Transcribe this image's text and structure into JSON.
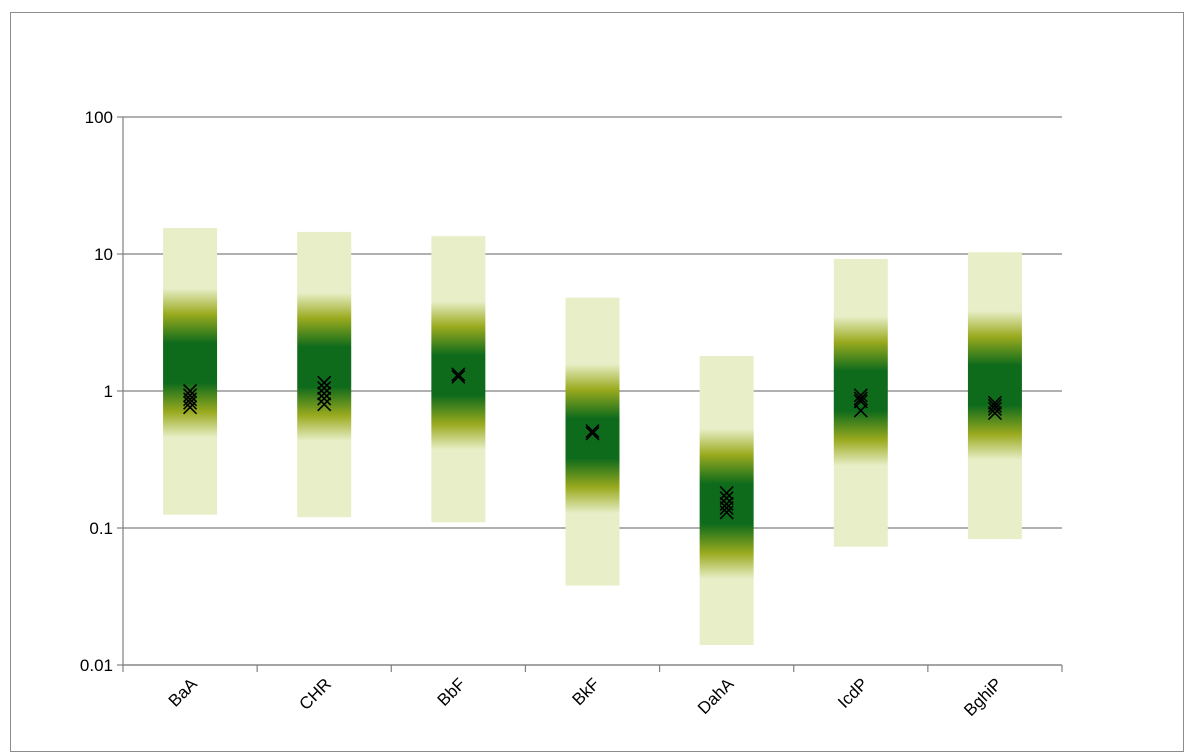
{
  "chart_data": {
    "type": "range-band",
    "yscale": "log",
    "ylim": [
      0.01,
      100
    ],
    "y_ticks": [
      "0.01",
      "0.1",
      "1",
      "10",
      "100"
    ],
    "grid": true,
    "categories": [
      "BaA",
      "CHR",
      "BbF",
      "BkF",
      "DahA",
      "IcdP",
      "BghiP"
    ],
    "bands": [
      {
        "category": "BaA",
        "low": 0.125,
        "high": 15.5,
        "center": 1.6
      },
      {
        "category": "CHR",
        "low": 0.12,
        "high": 14.5,
        "center": 1.5
      },
      {
        "category": "BbF",
        "low": 0.11,
        "high": 13.5,
        "center": 1.3
      },
      {
        "category": "BkF",
        "low": 0.038,
        "high": 4.8,
        "center": 0.45
      },
      {
        "category": "DahA",
        "low": 0.014,
        "high": 1.8,
        "center": 0.15
      },
      {
        "category": "IcdP",
        "low": 0.073,
        "high": 9.2,
        "center": 1.0
      },
      {
        "category": "BghiP",
        "low": 0.083,
        "high": 10.3,
        "center": 1.1
      }
    ],
    "points": [
      {
        "category": "BaA",
        "values": [
          1.0,
          0.93,
          0.87,
          0.82,
          0.76
        ]
      },
      {
        "category": "CHR",
        "values": [
          1.15,
          1.05,
          0.96,
          0.88,
          0.8
        ]
      },
      {
        "category": "BbF",
        "values": [
          1.32,
          1.27
        ]
      },
      {
        "category": "BkF",
        "values": [
          0.51,
          0.49
        ]
      },
      {
        "category": "DahA",
        "values": [
          0.18,
          0.165,
          0.15,
          0.14,
          0.13
        ]
      },
      {
        "category": "IcdP",
        "values": [
          0.93,
          0.88,
          0.84,
          0.72
        ]
      },
      {
        "category": "BghiP",
        "values": [
          0.82,
          0.78,
          0.74,
          0.69
        ]
      }
    ],
    "colors": {
      "band_light": "#e8efc8",
      "band_mid": "#9aaa1e",
      "band_dark": "#0f6b1c",
      "marker": "#000000",
      "grid": "#808080"
    }
  }
}
